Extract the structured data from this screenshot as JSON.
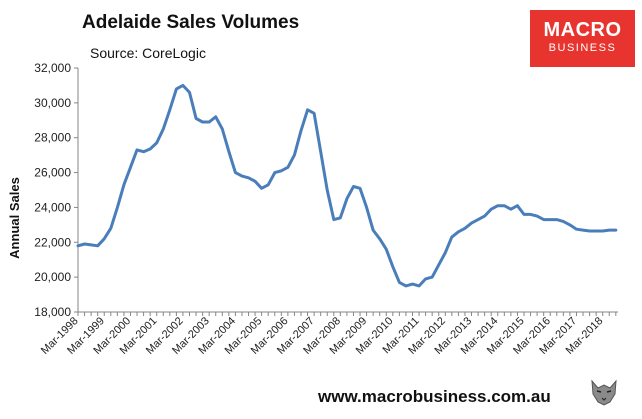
{
  "header": {
    "title": "Adelaide Sales Volumes",
    "source": "Source: CoreLogic"
  },
  "logo": {
    "line1": "MACRO",
    "line2": "BUSINESS",
    "color": "#e8342e"
  },
  "footer": {
    "url": "www.macrobusiness.com.au",
    "icon": "wolf-icon"
  },
  "chart_data": {
    "type": "line",
    "title": "Adelaide Sales Volumes",
    "ylabel": "Annual Sales",
    "xlabel": "",
    "ylim": [
      18000,
      32000
    ],
    "yticks": [
      18000,
      20000,
      22000,
      24000,
      26000,
      28000,
      30000,
      32000
    ],
    "ytick_labels": [
      "18,000",
      "20,000",
      "22,000",
      "24,000",
      "26,000",
      "28,000",
      "30,000",
      "32,000"
    ],
    "xlim": [
      "1998-03",
      "2018-10"
    ],
    "xtick_labels": [
      "Mar-1998",
      "Mar-1999",
      "Mar-2000",
      "Mar-2001",
      "Mar-2002",
      "Mar-2003",
      "Mar-2004",
      "Mar-2005",
      "Mar-2006",
      "Mar-2007",
      "Mar-2008",
      "Mar-2009",
      "Mar-2010",
      "Mar-2011",
      "Mar-2012",
      "Mar-2013",
      "Mar-2014",
      "Mar-2015",
      "Mar-2016",
      "Mar-2017",
      "Mar-2018"
    ],
    "grid": false,
    "legend": "none",
    "line_color": "#4a7ebb",
    "series": [
      {
        "x": [
          "1998-03",
          "1998-06",
          "1998-09",
          "1998-12",
          "1999-03",
          "1999-06",
          "1999-09",
          "1999-12",
          "2000-03",
          "2000-06",
          "2000-09",
          "2000-12",
          "2001-03",
          "2001-06",
          "2001-09",
          "2001-12",
          "2002-03",
          "2002-06",
          "2002-09",
          "2002-12",
          "2003-03",
          "2003-06",
          "2003-09",
          "2003-12",
          "2004-03",
          "2004-06",
          "2004-09",
          "2004-12",
          "2005-03",
          "2005-06",
          "2005-09",
          "2005-12",
          "2006-03",
          "2006-06",
          "2006-09",
          "2006-12",
          "2007-03",
          "2007-06",
          "2007-09",
          "2007-12",
          "2008-03",
          "2008-06",
          "2008-09",
          "2008-12",
          "2009-03",
          "2009-06",
          "2009-09",
          "2009-12",
          "2010-03",
          "2010-06",
          "2010-09",
          "2010-12",
          "2011-03",
          "2011-06",
          "2011-09",
          "2011-12",
          "2012-03",
          "2012-06",
          "2012-09",
          "2012-12",
          "2013-03",
          "2013-06",
          "2013-09",
          "2013-12",
          "2014-03",
          "2014-06",
          "2014-09",
          "2014-12",
          "2015-03",
          "2015-06",
          "2015-09",
          "2015-12",
          "2016-03",
          "2016-06",
          "2016-09",
          "2016-12",
          "2017-03",
          "2017-06",
          "2017-09",
          "2017-12",
          "2018-03",
          "2018-06",
          "2018-09"
        ],
        "values": [
          21800,
          21900,
          21850,
          21800,
          22200,
          22800,
          24000,
          25300,
          26300,
          27300,
          27200,
          27350,
          27700,
          28500,
          29600,
          30800,
          31000,
          30600,
          29100,
          28900,
          28900,
          29200,
          28500,
          27200,
          26000,
          25800,
          25700,
          25500,
          25100,
          25300,
          26000,
          26100,
          26300,
          27000,
          28400,
          29600,
          29400,
          27200,
          25000,
          23300,
          23400,
          24500,
          25200,
          25100,
          24000,
          22700,
          22200,
          21600,
          20600,
          19700,
          19500,
          19600,
          19500,
          19900,
          20000,
          20700,
          21400,
          22300,
          22600,
          22800,
          23100,
          23300,
          23500,
          23900,
          24100,
          24100,
          23900,
          24100,
          23600,
          23600,
          23500,
          23300,
          23300,
          23300,
          23200,
          23000,
          22750,
          22700,
          22650,
          22650,
          22650,
          22700,
          22700
        ]
      }
    ]
  }
}
